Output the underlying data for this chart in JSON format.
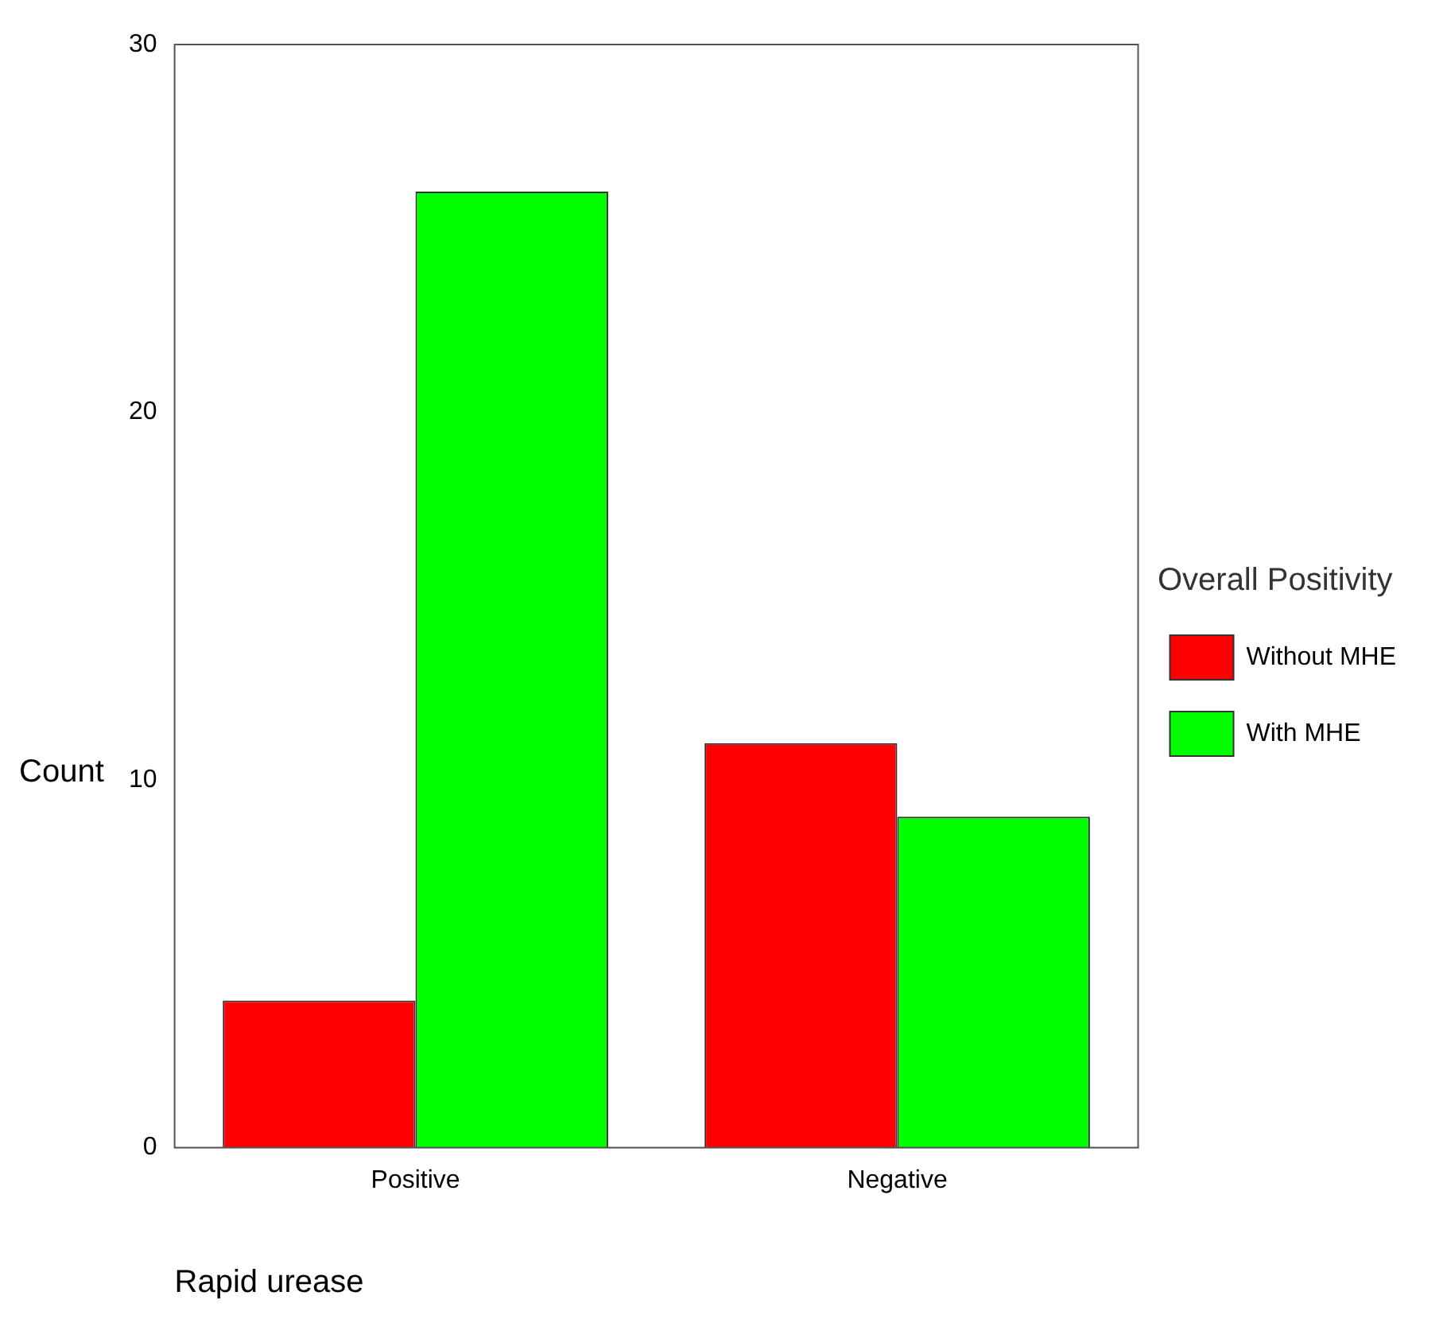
{
  "chart_data": {
    "type": "bar",
    "xlabel": "Rapid urease",
    "ylabel": "Count",
    "legend_title": "Overall Positivity",
    "categories": [
      "Positive",
      "Negative"
    ],
    "series": [
      {
        "name": "Without MHE",
        "color": "#ff0000",
        "values": [
          4,
          11
        ]
      },
      {
        "name": "With MHE",
        "color": "#00ff00",
        "values": [
          26,
          9
        ]
      }
    ],
    "ylim": [
      0,
      30
    ],
    "yticks": [
      0,
      10,
      20,
      30
    ],
    "grid": false,
    "legend": "right"
  }
}
